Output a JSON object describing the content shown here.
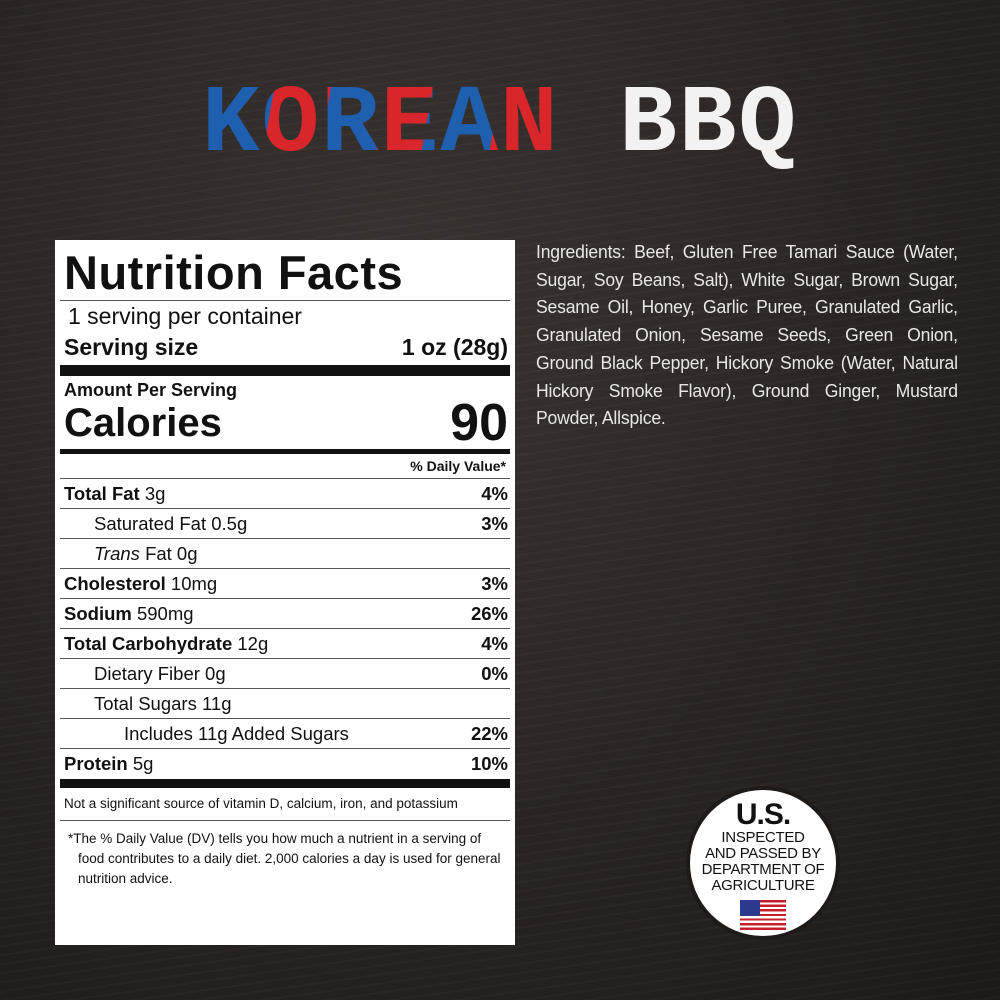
{
  "title": {
    "part1": "KOREAN",
    "part2": "BBQ"
  },
  "colors": {
    "red": "#d8262a",
    "blue": "#1e5fb0",
    "background": "#2a2523"
  },
  "nutrition": {
    "heading": "Nutrition Facts",
    "servings": "1 serving per container",
    "serving_size_label": "Serving size",
    "serving_size_value": "1 oz (28g)",
    "amount_per_serving": "Amount Per Serving",
    "calories_label": "Calories",
    "calories_value": "90",
    "dv_header": "% Daily Value*",
    "rows": [
      {
        "name": "Total Fat",
        "amount": "3g",
        "dv": "4%"
      },
      {
        "name": "Saturated Fat",
        "amount": "0.5g",
        "dv": "3%"
      },
      {
        "name": "Trans",
        "amount": "Fat 0g",
        "dv": ""
      },
      {
        "name": "Cholesterol",
        "amount": "10mg",
        "dv": "3%"
      },
      {
        "name": "Sodium",
        "amount": "590mg",
        "dv": "26%"
      },
      {
        "name": "Total Carbohydrate",
        "amount": "12g",
        "dv": "4%"
      },
      {
        "name": "Dietary Fiber",
        "amount": "0g",
        "dv": "0%"
      },
      {
        "name": "Total Sugars",
        "amount": "11g",
        "dv": ""
      },
      {
        "name": "Includes 11g Added Sugars",
        "amount": "",
        "dv": "22%"
      },
      {
        "name": "Protein",
        "amount": "5g",
        "dv": "10%"
      }
    ],
    "footnote1": "Not a significant source of vitamin D, calcium, iron, and potassium",
    "footnote2": "*The % Daily Value (DV) tells you how much a nutrient in a serving of food contributes to a daily diet. 2,000 calories a day is used for general nutrition advice."
  },
  "ingredients": "Ingredients: Beef, Gluten Free Tamari Sauce (Water, Sugar, Soy Beans, Salt), White Sugar, Brown Sugar, Sesame Oil, Honey, Garlic Puree, Granulated Garlic, Granulated Onion, Sesame Seeds, Green Onion, Ground Black Pepper, Hickory Smoke (Water, Natural Hickory Smoke Flavor), Ground Ginger, Mustard Powder, Allspice.",
  "seal": {
    "line1": "U.S.",
    "line2": "INSPECTED",
    "line3": "AND PASSED BY",
    "line4": "DEPARTMENT OF",
    "line5": "AGRICULTURE",
    "icon": "us-flag-icon"
  }
}
